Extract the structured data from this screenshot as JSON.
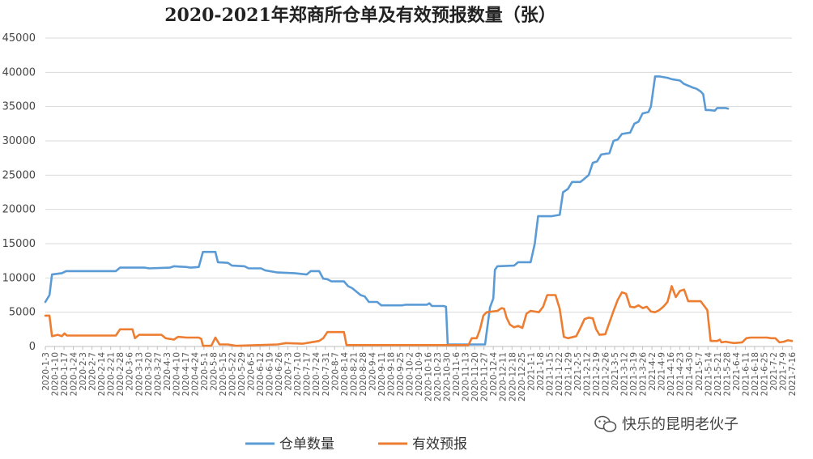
{
  "chart_data": {
    "type": "line",
    "title": "2020-2021年郑商所仓单及有效预报数量（张）",
    "ylim": [
      0,
      45000
    ],
    "yticks": [
      0,
      5000,
      10000,
      15000,
      20000,
      25000,
      30000,
      35000,
      40000,
      45000
    ],
    "x_tick_labels": [
      "2020-1-3",
      "2020-1-10",
      "2020-1-17",
      "2020-1-24",
      "2020-2-3",
      "2020-2-7",
      "2020-2-14",
      "2020-2-21",
      "2020-2-28",
      "2020-3-6",
      "2020-3-13",
      "2020-3-20",
      "2020-3-27",
      "2020-4-3",
      "2020-4-10",
      "2020-4-17",
      "2020-4-24",
      "2020-5-1",
      "2020-5-8",
      "2020-5-15",
      "2020-5-22",
      "2020-5-29",
      "2020-6-5",
      "2020-6-12",
      "2020-6-19",
      "2020-6-26",
      "2020-7-3",
      "2020-7-10",
      "2020-7-17",
      "2020-7-24",
      "2020-7-31",
      "2020-8-7",
      "2020-8-14",
      "2020-8-21",
      "2020-8-28",
      "2020-9-4",
      "2020-9-11",
      "2020-9-18",
      "2020-9-25",
      "2020-10-2",
      "2020-10-9",
      "2020-10-16",
      "2020-10-23",
      "2020-10-30",
      "2020-11-6",
      "2020-11-13",
      "2020-11-20",
      "2020-11-27",
      "2020-12-4",
      "2020-12-11",
      "2020-12-18",
      "2020-12-25",
      "2021-1-1",
      "2021-1-8",
      "2021-1-15",
      "2021-1-22",
      "2021-1-29",
      "2021-2-5",
      "2021-2-12",
      "2021-2-19",
      "2021-2-26",
      "2021-3-5",
      "2021-3-12",
      "2021-3-19",
      "2021-3-26",
      "2021-4-2",
      "2021-4-9",
      "2021-4-16",
      "2021-4-23",
      "2021-4-30",
      "2021-5-7",
      "2021-5-14",
      "2021-5-21",
      "2021-5-28",
      "2021-6-4",
      "2021-6-11",
      "2021-6-18",
      "2021-6-25",
      "2021-7-2",
      "2021-7-9",
      "2021-7-16"
    ],
    "legend_position": "bottom",
    "grid": true,
    "series": [
      {
        "name": "仓单数量",
        "color": "#5b9bd5",
        "points": [
          [
            0,
            6500
          ],
          [
            0.5,
            7500
          ],
          [
            0.8,
            10500
          ],
          [
            2,
            10700
          ],
          [
            2.5,
            11000
          ],
          [
            8.5,
            11000
          ],
          [
            9,
            11500
          ],
          [
            12,
            11500
          ],
          [
            12.5,
            11400
          ],
          [
            15,
            11500
          ],
          [
            15.5,
            11700
          ],
          [
            17,
            11600
          ],
          [
            17.5,
            11500
          ],
          [
            18.5,
            11600
          ],
          [
            19,
            13800
          ],
          [
            20.5,
            13800
          ],
          [
            20.8,
            12300
          ],
          [
            22,
            12200
          ],
          [
            22.5,
            11800
          ],
          [
            24,
            11700
          ],
          [
            24.5,
            11400
          ],
          [
            26,
            11400
          ],
          [
            26.5,
            11100
          ],
          [
            27,
            11000
          ],
          [
            28,
            10800
          ],
          [
            30,
            10700
          ],
          [
            31.5,
            10500
          ],
          [
            32,
            11000
          ],
          [
            33,
            11000
          ],
          [
            33.5,
            9900
          ],
          [
            34,
            9800
          ],
          [
            34.5,
            9500
          ],
          [
            36,
            9500
          ],
          [
            36.5,
            8800
          ],
          [
            37,
            8500
          ],
          [
            38,
            7500
          ],
          [
            38.5,
            7300
          ],
          [
            39,
            6500
          ],
          [
            40,
            6500
          ],
          [
            40.5,
            6000
          ],
          [
            43,
            6000
          ],
          [
            43.5,
            6100
          ],
          [
            46,
            6100
          ],
          [
            46.3,
            6300
          ],
          [
            46.6,
            5900
          ],
          [
            48,
            5900
          ],
          [
            48.3,
            5800
          ],
          [
            48.5,
            300
          ],
          [
            51.5,
            300
          ],
          [
            53,
            300
          ],
          [
            53.6,
            5700
          ],
          [
            54,
            7000
          ],
          [
            54.2,
            11200
          ],
          [
            54.5,
            11700
          ],
          [
            56.5,
            11800
          ],
          [
            57,
            12300
          ],
          [
            58.5,
            12300
          ],
          [
            59,
            15000
          ],
          [
            59.4,
            19000
          ],
          [
            61,
            19000
          ],
          [
            62,
            19200
          ],
          [
            62.4,
            22500
          ],
          [
            63,
            23000
          ],
          [
            63.5,
            24000
          ],
          [
            64.5,
            24000
          ],
          [
            65,
            24500
          ],
          [
            65.5,
            25000
          ],
          [
            66,
            26800
          ],
          [
            66.5,
            27000
          ],
          [
            67,
            28000
          ],
          [
            68,
            28200
          ],
          [
            68.5,
            30000
          ],
          [
            69,
            30200
          ],
          [
            69.5,
            31000
          ],
          [
            70.5,
            31200
          ],
          [
            71,
            32500
          ],
          [
            71.5,
            32800
          ],
          [
            72,
            34000
          ],
          [
            72.7,
            34200
          ],
          [
            73,
            35000
          ],
          [
            73.5,
            39400
          ],
          [
            74,
            39400
          ],
          [
            75,
            39200
          ],
          [
            75.5,
            39000
          ],
          [
            76.5,
            38800
          ],
          [
            77,
            38300
          ],
          [
            78,
            37800
          ],
          [
            78.5,
            37600
          ],
          [
            79,
            37200
          ],
          [
            79.3,
            36800
          ],
          [
            79.6,
            34500
          ],
          [
            80,
            34500
          ],
          [
            80.7,
            34400
          ],
          [
            81,
            34800
          ],
          [
            82,
            34800
          ],
          [
            82.3,
            34700
          ]
        ]
      },
      {
        "name": "有效预报",
        "color": "#ed7d31",
        "points": [
          [
            0,
            4500
          ],
          [
            0.5,
            4500
          ],
          [
            0.8,
            1500
          ],
          [
            1.5,
            1700
          ],
          [
            2,
            1500
          ],
          [
            2.3,
            1900
          ],
          [
            2.6,
            1600
          ],
          [
            8.5,
            1600
          ],
          [
            9,
            2500
          ],
          [
            10.5,
            2500
          ],
          [
            10.8,
            1200
          ],
          [
            11.3,
            1700
          ],
          [
            14,
            1700
          ],
          [
            14.5,
            1200
          ],
          [
            15.5,
            1000
          ],
          [
            16,
            1400
          ],
          [
            17,
            1300
          ],
          [
            18.5,
            1300
          ],
          [
            18.8,
            1100
          ],
          [
            19,
            100
          ],
          [
            20,
            100
          ],
          [
            20.5,
            1300
          ],
          [
            21,
            300
          ],
          [
            22,
            300
          ],
          [
            23,
            100
          ],
          [
            28,
            300
          ],
          [
            29,
            500
          ],
          [
            31,
            400
          ],
          [
            33,
            800
          ],
          [
            33.5,
            1200
          ],
          [
            34,
            2100
          ],
          [
            36,
            2100
          ],
          [
            36.3,
            200
          ],
          [
            46,
            200
          ],
          [
            47,
            200
          ],
          [
            51,
            200
          ],
          [
            51.4,
            1200
          ],
          [
            52,
            1200
          ],
          [
            52.4,
            2500
          ],
          [
            52.8,
            4500
          ],
          [
            53.2,
            5000
          ],
          [
            54.5,
            5200
          ],
          [
            55,
            5600
          ],
          [
            55.3,
            5500
          ],
          [
            55.6,
            4200
          ],
          [
            56,
            3200
          ],
          [
            56.5,
            2800
          ],
          [
            57,
            3000
          ],
          [
            57.5,
            2700
          ],
          [
            58,
            4800
          ],
          [
            58.5,
            5200
          ],
          [
            59.5,
            5000
          ],
          [
            60,
            5800
          ],
          [
            60.5,
            7500
          ],
          [
            61.5,
            7500
          ],
          [
            62,
            5500
          ],
          [
            62.5,
            1400
          ],
          [
            63,
            1200
          ],
          [
            64,
            1500
          ],
          [
            64.5,
            2700
          ],
          [
            65,
            4000
          ],
          [
            65.5,
            4200
          ],
          [
            66,
            4100
          ],
          [
            66.4,
            2500
          ],
          [
            66.8,
            1700
          ],
          [
            67.5,
            1800
          ],
          [
            68,
            3500
          ],
          [
            68.5,
            5200
          ],
          [
            69,
            6800
          ],
          [
            69.5,
            7900
          ],
          [
            70,
            7700
          ],
          [
            70.5,
            5800
          ],
          [
            71,
            5700
          ],
          [
            71.5,
            6000
          ],
          [
            72,
            5600
          ],
          [
            72.5,
            5800
          ],
          [
            73,
            5100
          ],
          [
            73.5,
            5000
          ],
          [
            74,
            5300
          ],
          [
            74.5,
            5800
          ],
          [
            75,
            6500
          ],
          [
            75.5,
            8800
          ],
          [
            76,
            7200
          ],
          [
            76.5,
            8100
          ],
          [
            77,
            8300
          ],
          [
            77.5,
            6600
          ],
          [
            79,
            6600
          ],
          [
            79.5,
            5800
          ],
          [
            79.8,
            5300
          ],
          [
            80.2,
            800
          ],
          [
            81,
            800
          ],
          [
            81.3,
            1000
          ],
          [
            81.5,
            600
          ],
          [
            82,
            700
          ],
          [
            83,
            500
          ],
          [
            84,
            600
          ],
          [
            84.5,
            1200
          ],
          [
            85,
            1300
          ],
          [
            87,
            1300
          ],
          [
            87.5,
            1200
          ],
          [
            88,
            1200
          ],
          [
            88.5,
            600
          ],
          [
            89,
            700
          ],
          [
            89.5,
            900
          ],
          [
            90,
            800
          ]
        ]
      }
    ]
  },
  "watermark": {
    "icon": "wechat-icon",
    "text": "快乐的昆明老伙子"
  }
}
